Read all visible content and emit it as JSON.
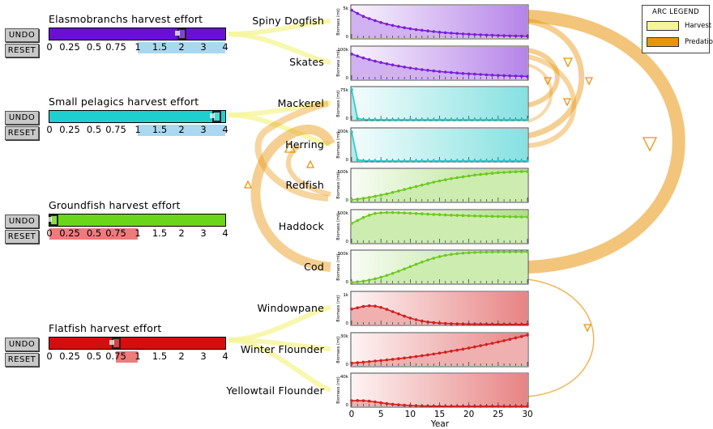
{
  "controls": {
    "undo_label": "UNDO",
    "reset_label": "RESET",
    "ticks": [
      "0",
      "0.25",
      "0.5",
      "0.75",
      "1",
      "1.5",
      "2",
      "3",
      "4"
    ],
    "groups": [
      {
        "title": "Elasmobranchs harvest effort",
        "color": "#6a0fd4",
        "value": 2,
        "range": [
          1,
          4
        ],
        "range_color": "#aad8f0"
      },
      {
        "title": "Small pelagics harvest effort",
        "color": "#1ecfcf",
        "value": 4,
        "range": [
          1,
          4
        ],
        "range_color": "#aad8f0"
      },
      {
        "title": "Groundfish harvest effort",
        "color": "#6ad61a",
        "value": 0,
        "range": [
          0,
          1
        ],
        "range_color": "#ee7b7b"
      },
      {
        "title": "Flatfish harvest effort",
        "color": "#d40d0d",
        "value": 0.75,
        "range": [
          0.75,
          1
        ],
        "range_color": "#ee7b7b"
      }
    ]
  },
  "legend": {
    "title": "ARC LEGEND",
    "items": [
      {
        "label": "Harvest",
        "color": "#f5f59a"
      },
      {
        "label": "Predation",
        "color": "#e8950d"
      }
    ]
  },
  "axis": {
    "xlabel": "Year",
    "ylabel": "Biomass (mt)",
    "x_ticks": [
      "0",
      "5",
      "10",
      "15",
      "20",
      "25",
      "30"
    ]
  },
  "chart_data": [
    {
      "type": "area",
      "species": "Spiny Dogfish",
      "color": "#7a1fd6",
      "y_max_label": "5k",
      "ymax": 5000,
      "x": [
        0,
        1,
        2,
        3,
        4,
        5,
        6,
        7,
        8,
        9,
        10,
        11,
        12,
        13,
        14,
        15,
        16,
        17,
        18,
        19,
        20,
        21,
        22,
        23,
        24,
        25,
        26,
        27,
        28,
        29,
        30
      ],
      "y": [
        4300,
        3800,
        3350,
        3000,
        2700,
        2400,
        2150,
        1950,
        1750,
        1600,
        1450,
        1300,
        1200,
        1100,
        1000,
        900,
        820,
        760,
        700,
        640,
        590,
        540,
        500,
        460,
        430,
        400,
        370,
        340,
        320,
        300,
        280
      ]
    },
    {
      "type": "area",
      "species": "Skates",
      "color": "#7a1fd6",
      "y_max_label": "100k",
      "ymax": 100000,
      "x": [
        0,
        1,
        2,
        3,
        4,
        5,
        6,
        7,
        8,
        9,
        10,
        11,
        12,
        13,
        14,
        15,
        16,
        17,
        18,
        19,
        20,
        21,
        22,
        23,
        24,
        25,
        26,
        27,
        28,
        29,
        30
      ],
      "y": [
        78000,
        72000,
        66000,
        61000,
        56000,
        52000,
        48000,
        44500,
        41000,
        38000,
        35000,
        32500,
        30000,
        28000,
        26000,
        24000,
        22500,
        21000,
        19500,
        18000,
        17000,
        16000,
        15000,
        14000,
        13000,
        12200,
        11500,
        10800,
        10200,
        9600,
        9000
      ]
    },
    {
      "type": "area",
      "species": "Mackerel",
      "color": "#22c8c8",
      "y_max_label": "75k",
      "ymax": 75000,
      "x": [
        0,
        1,
        2,
        3,
        4,
        5,
        6,
        7,
        8,
        9,
        10,
        11,
        12,
        13,
        14,
        15,
        16,
        17,
        18,
        19,
        20,
        21,
        22,
        23,
        24,
        25,
        26,
        27,
        28,
        29,
        30
      ],
      "y": [
        70000,
        3000,
        800,
        400,
        300,
        250,
        200,
        200,
        200,
        200,
        200,
        200,
        200,
        200,
        200,
        200,
        200,
        200,
        200,
        200,
        200,
        200,
        200,
        200,
        200,
        200,
        200,
        200,
        200,
        200,
        200
      ]
    },
    {
      "type": "area",
      "species": "Herring",
      "color": "#22c8c8",
      "y_max_label": "200k",
      "ymax": 200000,
      "x": [
        0,
        1,
        2,
        3,
        4,
        5,
        6,
        7,
        8,
        9,
        10,
        11,
        12,
        13,
        14,
        15,
        16,
        17,
        18,
        19,
        20,
        21,
        22,
        23,
        24,
        25,
        26,
        27,
        28,
        29,
        30
      ],
      "y": [
        180000,
        8000,
        2000,
        1000,
        800,
        600,
        500,
        500,
        500,
        500,
        500,
        500,
        500,
        500,
        500,
        500,
        500,
        500,
        500,
        500,
        500,
        500,
        500,
        500,
        500,
        500,
        500,
        500,
        500,
        500,
        500
      ]
    },
    {
      "type": "area",
      "species": "Redfish",
      "color": "#6cc81e",
      "y_max_label": "500k",
      "ymax": 550000,
      "x": [
        0,
        1,
        2,
        3,
        4,
        5,
        6,
        7,
        8,
        9,
        10,
        11,
        12,
        13,
        14,
        15,
        16,
        17,
        18,
        19,
        20,
        21,
        22,
        23,
        24,
        25,
        26,
        27,
        28,
        29,
        30
      ],
      "y": [
        30000,
        40000,
        55000,
        70000,
        90000,
        110000,
        130000,
        155000,
        180000,
        205000,
        230000,
        255000,
        280000,
        305000,
        330000,
        350000,
        370000,
        390000,
        405000,
        420000,
        435000,
        450000,
        460000,
        470000,
        480000,
        490000,
        495000,
        500000,
        505000,
        510000,
        510000
      ]
    },
    {
      "type": "area",
      "species": "Haddock",
      "color": "#6cc81e",
      "y_max_label": "500k",
      "ymax": 550000,
      "x": [
        0,
        1,
        2,
        3,
        4,
        5,
        6,
        7,
        8,
        9,
        10,
        11,
        12,
        13,
        14,
        15,
        16,
        17,
        18,
        19,
        20,
        21,
        22,
        23,
        24,
        25,
        26,
        27,
        28,
        29,
        30
      ],
      "y": [
        330000,
        380000,
        430000,
        470000,
        500000,
        510000,
        515000,
        515000,
        512000,
        508000,
        503000,
        498000,
        493000,
        488000,
        483000,
        478000,
        474000,
        470000,
        466000,
        463000,
        460000,
        457000,
        454000,
        452000,
        450000,
        448000,
        446000,
        444000,
        442000,
        440000,
        439000
      ]
    },
    {
      "type": "area",
      "species": "Cod",
      "color": "#6cc81e",
      "y_max_label": "300k",
      "ymax": 320000,
      "x": [
        0,
        1,
        2,
        3,
        4,
        5,
        6,
        7,
        8,
        9,
        10,
        11,
        12,
        13,
        14,
        15,
        16,
        17,
        18,
        19,
        20,
        21,
        22,
        23,
        24,
        25,
        26,
        27,
        28,
        29,
        30
      ],
      "y": [
        10000,
        15000,
        22000,
        32000,
        45000,
        60000,
        78000,
        98000,
        120000,
        142000,
        165000,
        188000,
        210000,
        230000,
        248000,
        264000,
        276000,
        286000,
        293000,
        298000,
        302000,
        305000,
        307000,
        308000,
        309000,
        310000,
        310000,
        310000,
        311000,
        311000,
        311000
      ]
    },
    {
      "type": "area",
      "species": "Windowpane",
      "color": "#d41e1e",
      "y_max_label": "1k",
      "ymax": 1000,
      "x": [
        0,
        1,
        2,
        3,
        4,
        5,
        6,
        7,
        8,
        9,
        10,
        11,
        12,
        13,
        14,
        15,
        16,
        17,
        18,
        19,
        20,
        21,
        22,
        23,
        24,
        25,
        26,
        27,
        28,
        29,
        30
      ],
      "y": [
        480,
        520,
        560,
        580,
        570,
        530,
        470,
        400,
        330,
        260,
        200,
        150,
        110,
        80,
        60,
        45,
        35,
        28,
        22,
        18,
        15,
        13,
        11,
        10,
        9,
        8,
        7,
        6,
        6,
        5,
        5
      ]
    },
    {
      "type": "area",
      "species": "Winter Flounder",
      "color": "#d41e1e",
      "y_max_label": "30k",
      "ymax": 35000,
      "x": [
        0,
        1,
        2,
        3,
        4,
        5,
        6,
        7,
        8,
        9,
        10,
        11,
        12,
        13,
        14,
        15,
        16,
        17,
        18,
        19,
        20,
        21,
        22,
        23,
        24,
        25,
        26,
        27,
        28,
        29,
        30
      ],
      "y": [
        3000,
        3500,
        4000,
        4600,
        5200,
        5800,
        6400,
        7100,
        7800,
        8500,
        9300,
        10100,
        11000,
        11900,
        12800,
        13800,
        14800,
        15900,
        17000,
        18100,
        19300,
        20500,
        21800,
        23100,
        24400,
        25800,
        27200,
        28700,
        30200,
        31700,
        33300
      ]
    },
    {
      "type": "area",
      "species": "Yellowtail Flounder",
      "color": "#d41e1e",
      "y_max_label": "40k",
      "ymax": 40000,
      "x": [
        0,
        1,
        2,
        3,
        4,
        5,
        6,
        7,
        8,
        9,
        10,
        11,
        12,
        13,
        14,
        15,
        16,
        17,
        18,
        19,
        20,
        21,
        22,
        23,
        24,
        25,
        26,
        27,
        28,
        29,
        30
      ],
      "y": [
        7000,
        7200,
        7000,
        6400,
        5500,
        4400,
        3400,
        2600,
        1900,
        1400,
        1000,
        700,
        500,
        350,
        250,
        180,
        130,
        100,
        80,
        60,
        50,
        40,
        30,
        25,
        20,
        15,
        12,
        10,
        8,
        6,
        5
      ]
    }
  ]
}
